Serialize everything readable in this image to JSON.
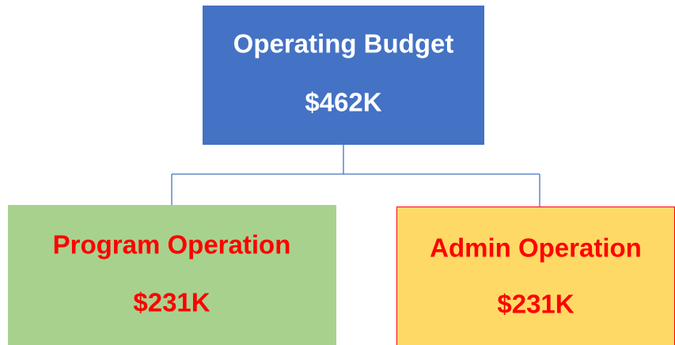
{
  "nodes": [
    {
      "label": "Operating Budget",
      "amount": "$462K"
    },
    {
      "label": "Program Operation",
      "amount": "$231K"
    },
    {
      "label": "Admin Operation",
      "amount": "$231K"
    }
  ]
}
